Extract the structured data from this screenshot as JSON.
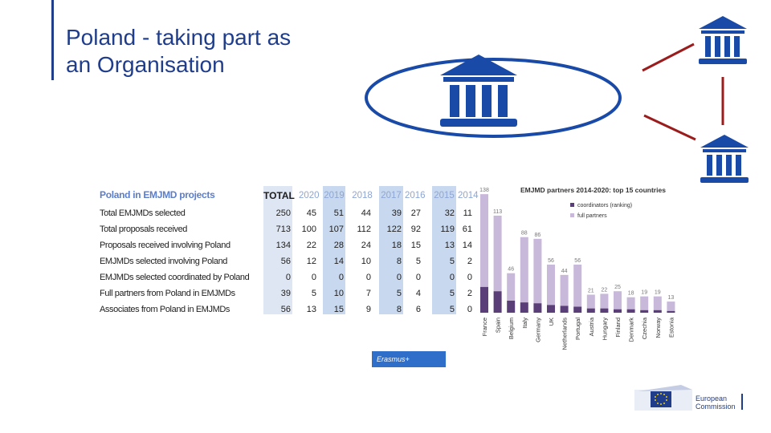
{
  "slide": {
    "title_line1": "Poland - taking part as",
    "title_line2": "an Organisation"
  },
  "colors": {
    "brand_blue": "#1f3d8a",
    "icon_blue": "#1a4aa8",
    "link_red": "#9b1c1c",
    "coordinators": "#5a3e78",
    "full_partners": "#c8b8da"
  },
  "icons": [
    "institution-icon-main",
    "institution-icon-top-right",
    "institution-icon-bottom-right"
  ],
  "table": {
    "heading": "Poland in EMJMD projects",
    "columns": [
      "TOTAL",
      "2020",
      "2019",
      "2018",
      "2017",
      "2016",
      "2015",
      "2014"
    ],
    "rows": [
      {
        "label": "Total EMJMDs selected",
        "values": [
          "250",
          "45",
          "51",
          "44",
          "39",
          "27",
          "32",
          "11"
        ]
      },
      {
        "label": "Total proposals received",
        "values": [
          "713",
          "100",
          "107",
          "112",
          "122",
          "92",
          "119",
          "61"
        ]
      },
      {
        "label": "Proposals received involving Poland",
        "values": [
          "134",
          "22",
          "28",
          "24",
          "18",
          "15",
          "13",
          "14"
        ]
      },
      {
        "label": "EMJMDs selected involving Poland",
        "values": [
          "56",
          "12",
          "14",
          "10",
          "8",
          "5",
          "5",
          "2"
        ]
      },
      {
        "label": "EMJMDs selected coordinated by Poland",
        "values": [
          "0",
          "0",
          "0",
          "0",
          "0",
          "0",
          "0",
          "0"
        ]
      },
      {
        "label": "Full partners from Poland in EMJMDs",
        "values": [
          "39",
          "5",
          "10",
          "7",
          "5",
          "4",
          "5",
          "2"
        ]
      },
      {
        "label": "Associates from Poland in EMJMDs",
        "values": [
          "56",
          "13",
          "15",
          "9",
          "8",
          "6",
          "5",
          "0"
        ]
      }
    ]
  },
  "chart_data": {
    "type": "bar",
    "title": "EMJMD partners 2014-2020: top 15 countries",
    "categories": [
      "France",
      "Spain",
      "Belgium",
      "Italy",
      "Germany",
      "UK",
      "Netherlands",
      "Portugal",
      "Austria",
      "Hungary",
      "Finland",
      "Denmark",
      "Czechia",
      "Norway",
      "Estonia"
    ],
    "totals": [
      138,
      113,
      46,
      88,
      86,
      56,
      44,
      56,
      21,
      22,
      25,
      18,
      19,
      19,
      13
    ],
    "series": [
      {
        "name": "coordinators (ranking)",
        "values": [
          30,
          25,
          14,
          12,
          11,
          9,
          8,
          7,
          5,
          5,
          4,
          4,
          3,
          3,
          2
        ]
      },
      {
        "name": "full partners",
        "values": [
          108,
          88,
          32,
          76,
          75,
          47,
          36,
          49,
          16,
          17,
          21,
          14,
          16,
          16,
          11
        ]
      }
    ],
    "ylim": [
      0,
      140
    ],
    "legend": "top-right"
  },
  "footer": {
    "erasmus_label": "Erasmus+",
    "ec_line1": "European",
    "ec_line2": "Commission"
  }
}
